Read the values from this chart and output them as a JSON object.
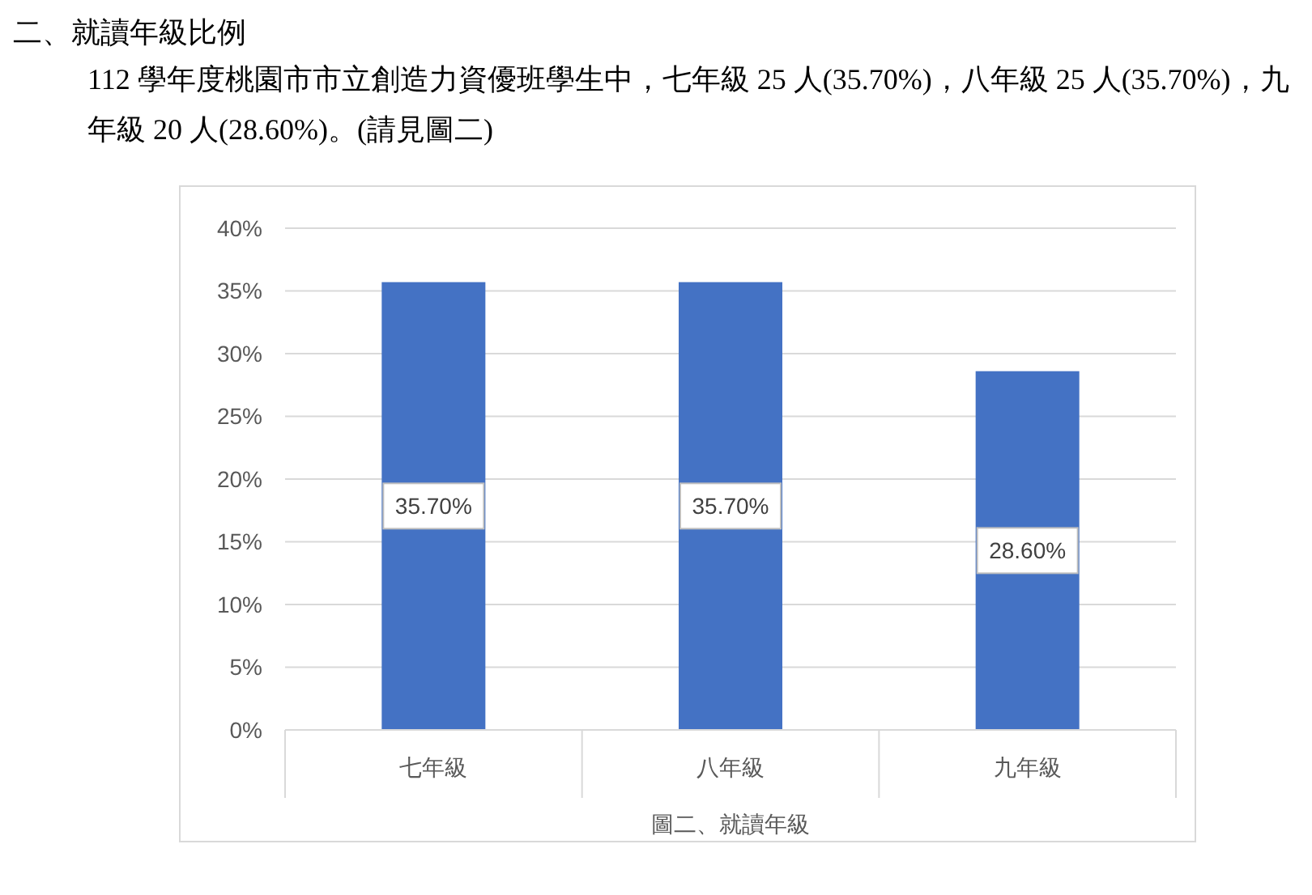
{
  "chart_data": {
    "type": "bar",
    "title": "二、就讀年級比例",
    "subtitle": "112 學年度桃園市市立創造力資優班學生中，七年級 25 人(35.70%)，八年級 25 人(35.70%)，九年級 20 人(28.60%)。(請見圖二)",
    "xlabel": "圖二、就讀年級",
    "categories": [
      "七年級",
      "八年級",
      "九年級"
    ],
    "values": [
      35.7,
      35.7,
      28.6
    ],
    "value_labels": [
      "35.70%",
      "35.70%",
      "28.60%"
    ],
    "color": "#4472c4",
    "ylim": [
      0,
      40
    ],
    "yticks": [
      {
        "value": 0,
        "label": "0%"
      },
      {
        "value": 5,
        "label": "5%"
      },
      {
        "value": 10,
        "label": "10%"
      },
      {
        "value": 15,
        "label": "15%"
      },
      {
        "value": 20,
        "label": "20%"
      },
      {
        "value": 25,
        "label": "25%"
      },
      {
        "value": 30,
        "label": "30%"
      },
      {
        "value": 35,
        "label": "35%"
      },
      {
        "value": 40,
        "label": "40%"
      }
    ],
    "grid": "y"
  }
}
